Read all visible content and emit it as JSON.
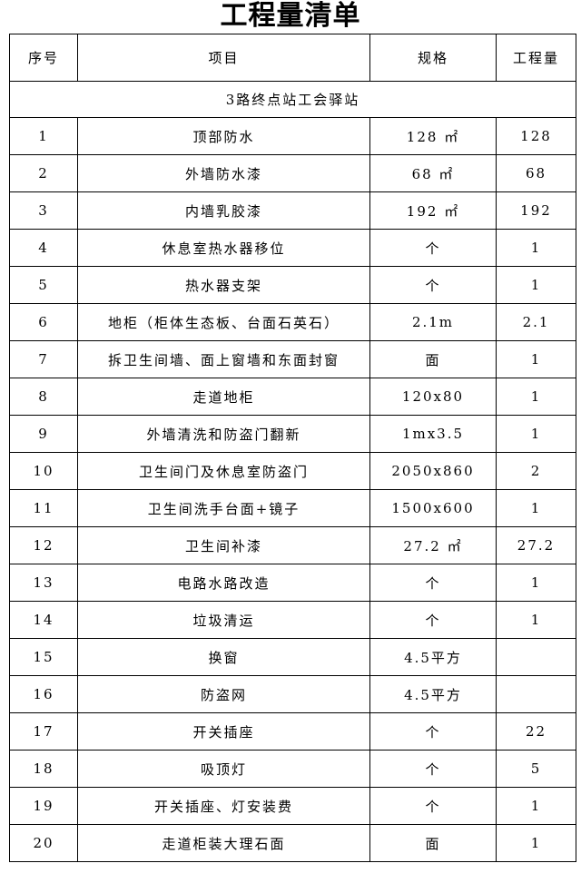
{
  "title": "工程量清单",
  "headers": [
    "序号",
    "项目",
    "规格",
    "工程量"
  ],
  "section": "3路终点站工会驿站",
  "rows": [
    [
      "1",
      "顶部防水",
      "128 ㎡",
      "128"
    ],
    [
      "2",
      "外墙防水漆",
      "68 ㎡",
      "68"
    ],
    [
      "3",
      "内墙乳胶漆",
      "192 ㎡",
      "192"
    ],
    [
      "4",
      "休息室热水器移位",
      "个",
      "1"
    ],
    [
      "5",
      "热水器支架",
      "个",
      "1"
    ],
    [
      "6",
      "地柜（柜体生态板、台面石英石）",
      "2.1m",
      "2.1"
    ],
    [
      "7",
      "拆卫生间墙、面上窗墙和东面封窗",
      "面",
      "1"
    ],
    [
      "8",
      "走道地柜",
      "120x80",
      "1"
    ],
    [
      "9",
      "外墙清洗和防盗门翻新",
      "1mx3.5",
      "1"
    ],
    [
      "10",
      "卫生间门及休息室防盗门",
      "2050x860",
      "2"
    ],
    [
      "11",
      "卫生间洗手台面+镜子",
      "1500x600",
      "1"
    ],
    [
      "12",
      "卫生间补漆",
      "27.2 ㎡",
      "27.2"
    ],
    [
      "13",
      "电路水路改造",
      "个",
      "1"
    ],
    [
      "14",
      "垃圾清运",
      "个",
      "1"
    ],
    [
      "15",
      "换窗",
      "4.5平方",
      ""
    ],
    [
      "16",
      "防盗网",
      "4.5平方",
      ""
    ],
    [
      "17",
      "开关插座",
      "个",
      "22"
    ],
    [
      "18",
      "吸顶灯",
      "个",
      "5"
    ],
    [
      "19",
      "开关插座、灯安装费",
      "个",
      "1"
    ],
    [
      "20",
      "走道柜装大理石面",
      "面",
      "1"
    ]
  ]
}
